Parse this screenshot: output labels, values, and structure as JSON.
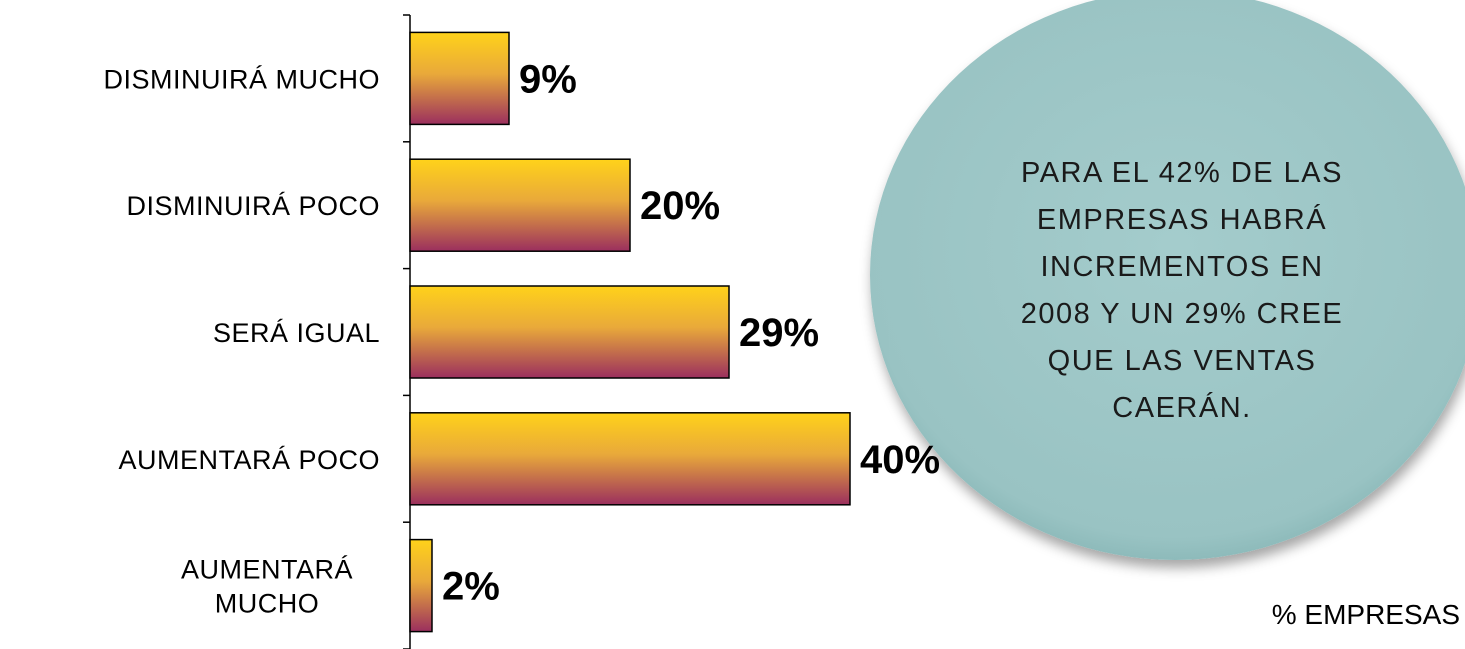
{
  "chart_data": {
    "type": "bar",
    "orientation": "horizontal",
    "categories": [
      [
        "DISMINUIRÁ MUCHO"
      ],
      [
        "DISMINUIRÁ POCO"
      ],
      [
        "SERÁ IGUAL"
      ],
      [
        "AUMENTARÁ POCO"
      ],
      [
        "AUMENTARÁ",
        "MUCHO"
      ]
    ],
    "values": [
      9,
      20,
      29,
      40,
      2
    ],
    "value_labels": [
      "9%",
      "20%",
      "29%",
      "40%",
      "2%"
    ],
    "unit": "%",
    "xlim": [
      0,
      100
    ],
    "grid": false,
    "legend": "% EMPRESAS",
    "colors": {
      "bar_top": "#ffd21a",
      "bar_mid": "#d98a3a",
      "bar_bottom": "#9b2f5e",
      "bar_stroke": "#000000",
      "callout": "#9dc6c6"
    }
  },
  "callout": {
    "lines": [
      "PARA EL 42% DE LAS",
      "EMPRESAS HABRÁ",
      "INCREMENTOS EN",
      "2008 Y UN 29% CREE",
      "QUE LAS VENTAS",
      "CAERÁN."
    ]
  }
}
